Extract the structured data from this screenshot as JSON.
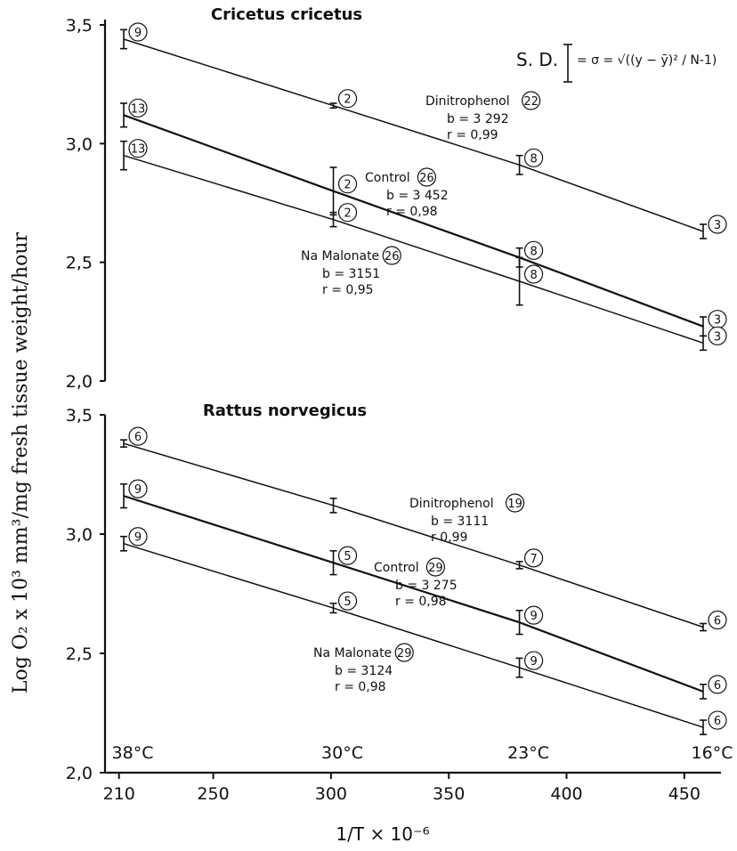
{
  "chart_data": [
    {
      "type": "line",
      "title": "Cricetus cricetus",
      "x_values": [
        212,
        301,
        380,
        458
      ],
      "ylim": [
        2.0,
        3.5
      ],
      "yticks": [
        "2,0",
        "2,5",
        "3,0",
        "3,5"
      ],
      "series": [
        {
          "name": "Dinitrophenol",
          "n_circle": "22",
          "b_text": "b = 3 292",
          "r_text": "r = 0,99",
          "values": [
            3.44,
            3.16,
            2.91,
            2.63
          ],
          "err": [
            0.04,
            0.01,
            0.04,
            0.03
          ],
          "n": [
            "9",
            "2",
            "8",
            "3"
          ]
        },
        {
          "name": "Control",
          "n_circle": "26",
          "b_text": "b = 3 452",
          "r_text": "r = 0,98",
          "values": [
            3.12,
            2.8,
            2.52,
            2.23
          ],
          "err": [
            0.05,
            0.1,
            0.04,
            0.04
          ],
          "n": [
            "13",
            "2",
            "8",
            "3"
          ]
        },
        {
          "name": "Na Malonate",
          "n_circle": "26",
          "b_text": "b = 3151",
          "r_text": "r = 0,95",
          "values": [
            2.95,
            2.68,
            2.42,
            2.16
          ],
          "err": [
            0.06,
            0.03,
            0.1,
            0.03
          ],
          "n": [
            "13",
            "2",
            "8",
            "3"
          ]
        }
      ]
    },
    {
      "type": "line",
      "title": "Rattus norvegicus",
      "x_values": [
        212,
        301,
        380,
        458
      ],
      "ylim": [
        2.0,
        3.5
      ],
      "yticks": [
        "2,0",
        "2,5",
        "3,0",
        "3,5"
      ],
      "series": [
        {
          "name": "Dinitrophenol",
          "n_circle": "19",
          "b_text": "b = 3111",
          "r_text": "r  0,99",
          "values": [
            3.38,
            3.12,
            2.87,
            2.61
          ],
          "err": [
            0.015,
            0.03,
            0.015,
            0.015
          ],
          "n": [
            "6",
            "",
            "7",
            "6"
          ]
        },
        {
          "name": "Control",
          "n_circle": "29",
          "b_text": "b = 3 275",
          "r_text": "r = 0,98",
          "values": [
            3.16,
            2.88,
            2.63,
            2.34
          ],
          "err": [
            0.05,
            0.05,
            0.05,
            0.03
          ],
          "n": [
            "9",
            "5",
            "9",
            "6"
          ]
        },
        {
          "name": "Na Malonate",
          "n_circle": "29",
          "b_text": "b = 3124",
          "r_text": "r = 0,98",
          "values": [
            2.96,
            2.69,
            2.44,
            2.19
          ],
          "err": [
            0.03,
            0.02,
            0.04,
            0.03
          ],
          "n": [
            "9",
            "5",
            "9",
            "6"
          ]
        }
      ]
    }
  ],
  "axes": {
    "ylabel": "Log O₂ x 10³ mm³/mg fresh tissue weight/hour",
    "xlabel": "1/T × 10⁻⁶",
    "xticks": [
      "210",
      "250",
      "300",
      "350",
      "400",
      "450"
    ],
    "xtick_values": [
      210,
      250,
      300,
      350,
      400,
      450
    ],
    "xlim": [
      210,
      460
    ],
    "temperatures": [
      "38°C",
      "30°C",
      "23°C",
      "16°C"
    ],
    "temperature_x": [
      212,
      301,
      380,
      458
    ]
  },
  "sd_formula": {
    "prefix": "S. D.",
    "expr": "= σ = √((y − ȳ)² / N-1)"
  }
}
